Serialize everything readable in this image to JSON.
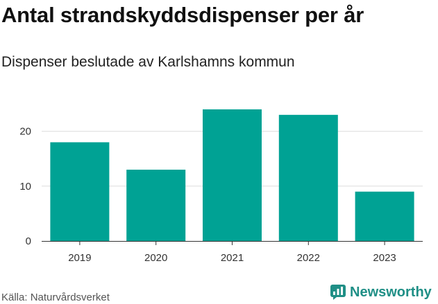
{
  "header": {
    "title": "Antal strandskyddsdispenser per år",
    "subtitle": "Dispenser beslutade av Karlshamns kommun"
  },
  "footer": {
    "source": "Källa: Naturvårdsverket",
    "brand": "Newsworthy",
    "brand_icon": "newsworthy-logo-icon"
  },
  "colors": {
    "bar": "#00a294",
    "grid": "#dddddd",
    "axis": "#333333",
    "brand": "#1f8f86"
  },
  "chart_data": {
    "type": "bar",
    "title": "Antal strandskyddsdispenser per år",
    "subtitle": "Dispenser beslutade av Karlshamns kommun",
    "categories": [
      "2019",
      "2020",
      "2021",
      "2022",
      "2023"
    ],
    "values": [
      18,
      13,
      24,
      23,
      9
    ],
    "xlabel": "",
    "ylabel": "",
    "ylim": [
      0,
      24
    ],
    "yticks": [
      0,
      10,
      20
    ],
    "grid": true,
    "legend": "none"
  }
}
